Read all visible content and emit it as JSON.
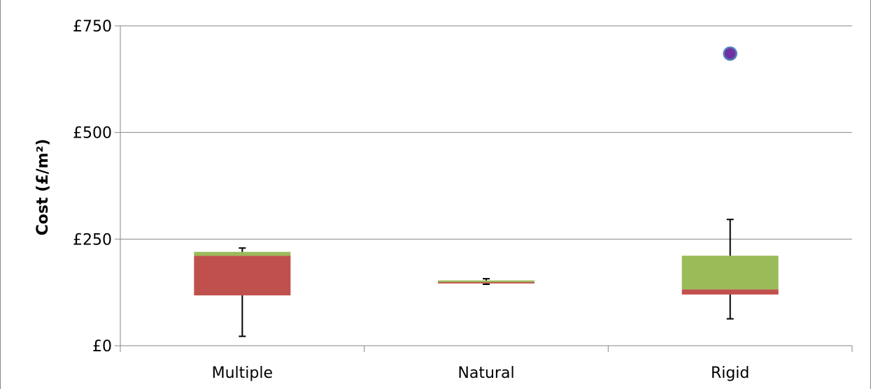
{
  "chart_data": {
    "type": "box",
    "categories": [
      "Multiple",
      "Natural",
      "Rigid"
    ],
    "ylabel": "Cost (£/m²)",
    "ylim": [
      0,
      750
    ],
    "yticks": [
      0,
      250,
      500,
      750
    ],
    "ytick_labels": [
      "£0",
      "£250",
      "£500",
      "£750"
    ],
    "grid": true,
    "colors": {
      "lower_box": "#c0504d",
      "upper_box": "#9bbb59",
      "outlier_fill": "#7030a0",
      "outlier_stroke": "#4f81bd",
      "whisker": "#000000",
      "gridline": "#868686"
    },
    "boxes": [
      {
        "category": "Multiple",
        "min": 22,
        "q1": 118,
        "median": 211,
        "q3": 220,
        "max": 229
      },
      {
        "category": "Natural",
        "min": 144,
        "q1": 146,
        "median": 149,
        "q3": 153,
        "max": 157
      },
      {
        "category": "Rigid",
        "min": 63,
        "q1": 120,
        "median": 132,
        "q3": 211,
        "max": 296
      }
    ],
    "outliers": [
      {
        "category": "Rigid",
        "value": 685
      }
    ]
  }
}
